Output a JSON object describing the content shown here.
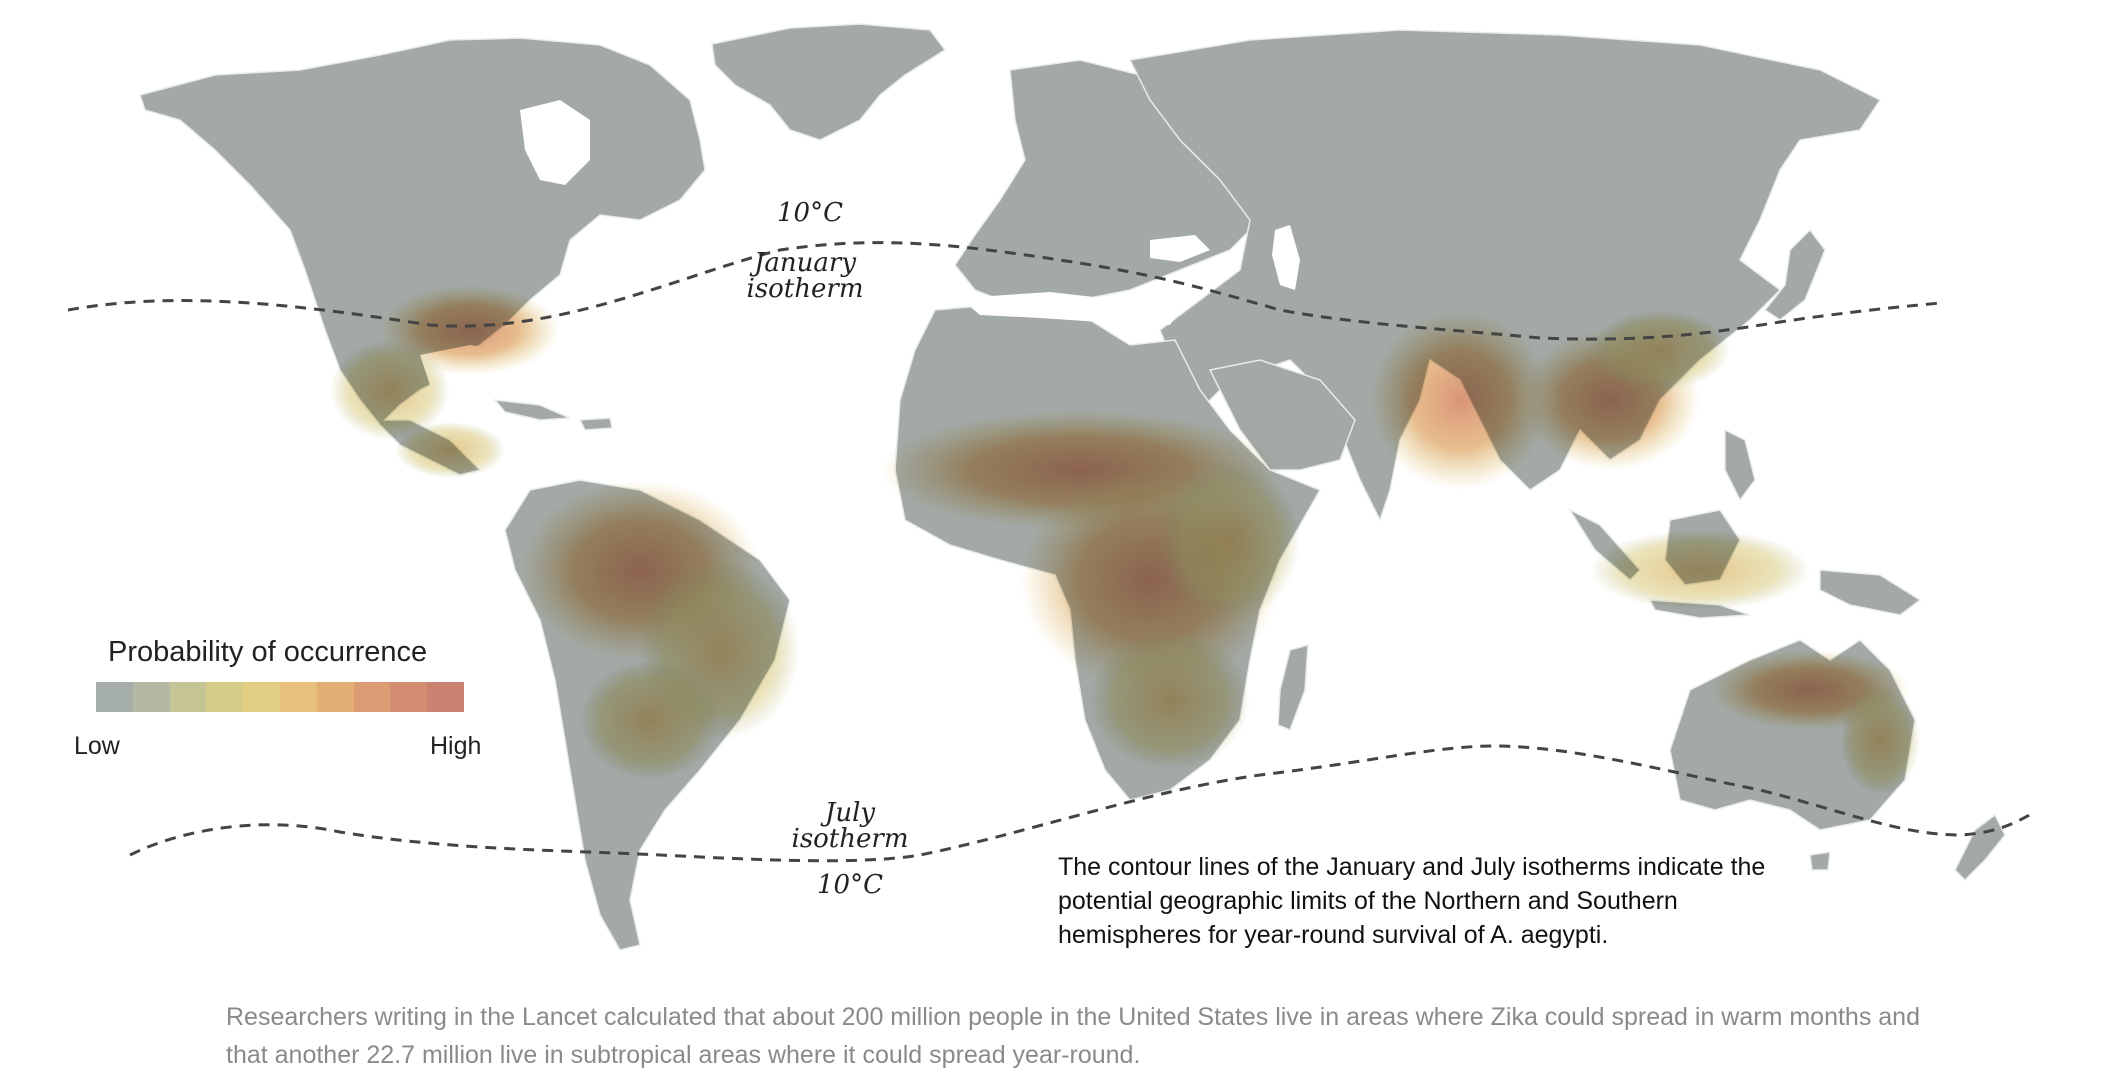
{
  "legend": {
    "title": "Probability of occurrence",
    "low_label": "Low",
    "high_label": "High",
    "colors": [
      "#a6aeaa",
      "#b3b9a4",
      "#c4c495",
      "#d6cb88",
      "#e2cf83",
      "#e6c07c",
      "#e3ad76",
      "#dc9c73",
      "#d38d72",
      "#ca8271"
    ]
  },
  "isotherms": {
    "january": {
      "temp_label": "10°C",
      "name_line1": "January",
      "name_line2": "isotherm"
    },
    "july": {
      "temp_label": "10°C",
      "name_line1": "July",
      "name_line2": "isotherm"
    }
  },
  "note": "The contour lines of the January and July isotherms indicate the potential geographic limits of the Northern and Southern hemispheres for year-round survival of A. aegypti.",
  "caption": "Researchers writing in the Lancet calculated that about 200 million people in the United States live in areas where Zika could spread in warm months and that another 22.7 million live in subtropical areas where it could spread year-round.",
  "colors": {
    "land": "#a3a9a6",
    "border": "#e8ecea",
    "isotherm_line": "#444444",
    "high_risk": "#d9926f",
    "mid_risk": "#e2c886"
  }
}
